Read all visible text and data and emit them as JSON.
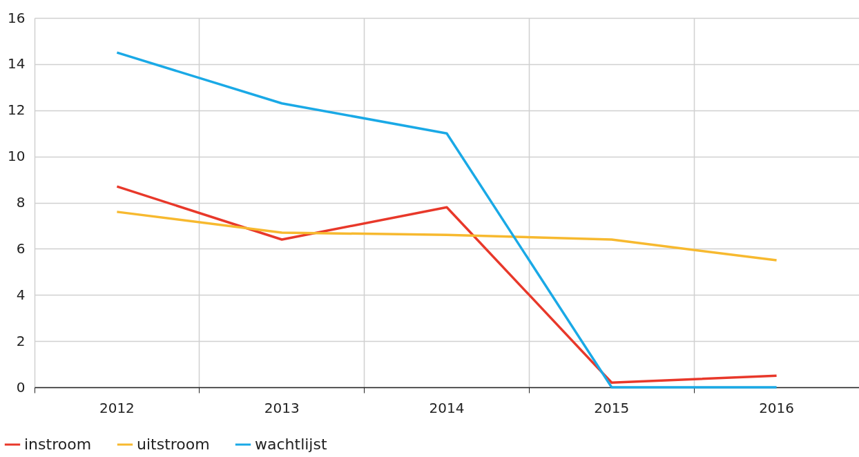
{
  "chart_data": {
    "type": "line",
    "categories": [
      "2012",
      "2013",
      "2014",
      "2015",
      "2016"
    ],
    "series": [
      {
        "name": "instroom",
        "color": "#e8382a",
        "values": [
          8.7,
          6.4,
          7.8,
          0.2,
          0.5
        ]
      },
      {
        "name": "uitstroom",
        "color": "#f7b92f",
        "values": [
          7.6,
          6.7,
          6.6,
          6.4,
          5.5
        ]
      },
      {
        "name": "wachtlijst",
        "color": "#1aa9e6",
        "values": [
          14.5,
          12.3,
          11.0,
          0,
          0
        ]
      }
    ],
    "ylim": [
      0,
      16
    ],
    "yticks": [
      0,
      2,
      4,
      6,
      8,
      10,
      12,
      14,
      16
    ],
    "grid": true,
    "legend": "bottom left",
    "line_style": "solid"
  }
}
